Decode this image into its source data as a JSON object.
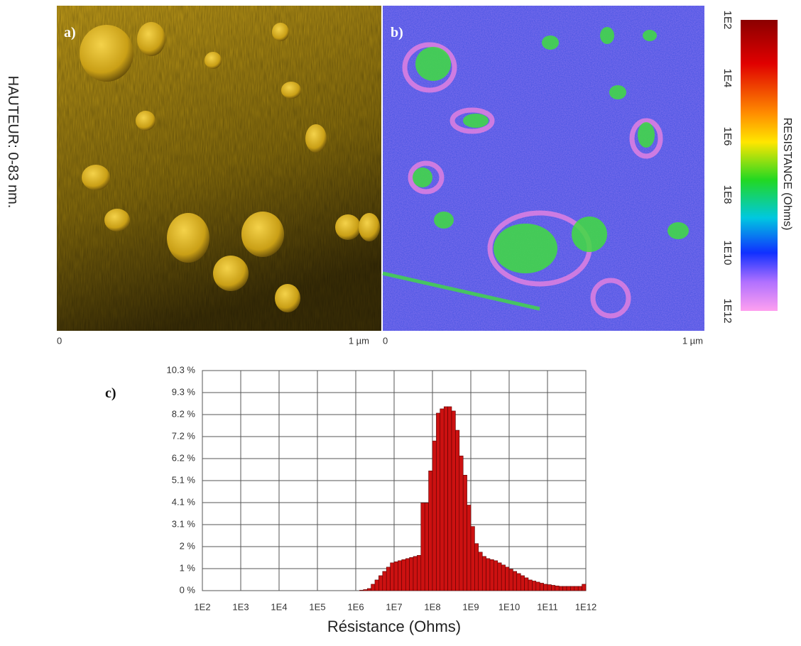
{
  "panels": [
    {
      "label": "a)",
      "x_start": "0",
      "x_end": "1 µm"
    },
    {
      "label": "b)",
      "x_start": "0",
      "x_end": "1 µm"
    }
  ],
  "height_label": "HAUTEUR: 0-83 nm.",
  "colorbar": {
    "title": "RESISTANCE (Ohms)",
    "ticks": [
      "1E2",
      "1E4",
      "1E6",
      "1E8",
      "1E10",
      "1E12"
    ]
  },
  "chart_data": {
    "type": "histogram",
    "label": "c)",
    "xlabel": "Résistance (Ohms)",
    "xscale": "log",
    "xlim": [
      100.0,
      1000000000000.0
    ],
    "xticks": [
      {
        "value": 100.0,
        "label": "1E2"
      },
      {
        "value": 1000.0,
        "label": "1E3"
      },
      {
        "value": 10000.0,
        "label": "1E4"
      },
      {
        "value": 100000.0,
        "label": "1E5"
      },
      {
        "value": 1000000.0,
        "label": "1E6"
      },
      {
        "value": 10000000.0,
        "label": "1E7"
      },
      {
        "value": 100000000.0,
        "label": "1E8"
      },
      {
        "value": 1000000000.0,
        "label": "1E9"
      },
      {
        "value": 10000000000.0,
        "label": "1E10"
      },
      {
        "value": 100000000000.0,
        "label": "1E11"
      },
      {
        "value": 1000000000000.0,
        "label": "1E12"
      }
    ],
    "ylim": [
      0,
      10.29
    ],
    "yticks": [
      {
        "value": 0,
        "label": "0 %"
      },
      {
        "value": 1.029,
        "label": "1 %"
      },
      {
        "value": 2.058,
        "label": "2 %"
      },
      {
        "value": 3.087,
        "label": "3.1 %"
      },
      {
        "value": 4.116,
        "label": "4.1 %"
      },
      {
        "value": 5.145,
        "label": "5.1 %"
      },
      {
        "value": 6.174,
        "label": "6.2 %"
      },
      {
        "value": 7.203,
        "label": "7.2 %"
      },
      {
        "value": 8.232,
        "label": "8.2 %"
      },
      {
        "value": 9.261,
        "label": "9.3 %"
      },
      {
        "value": 10.29,
        "label": "10.3 %"
      }
    ],
    "bins": [
      1000000.0,
      1260000.0,
      1580000.0,
      2000000.0,
      2510000.0,
      3160000.0,
      3980000.0,
      5010000.0,
      6310000.0,
      7940000.0,
      10000000.0,
      12600000.0,
      15800000.0,
      20000000.0,
      25100000.0,
      31600000.0,
      39800000.0,
      50100000.0,
      63100000.0,
      79400000.0,
      100000000.0,
      126000000.0,
      158000000.0,
      200000000.0,
      251000000.0,
      316000000.0,
      398000000.0,
      501000000.0,
      631000000.0,
      794000000.0,
      1000000000.0,
      1260000000.0,
      1580000000.0,
      2000000000.0,
      2510000000.0,
      3160000000.0,
      3980000000.0,
      5010000000.0,
      6310000000.0,
      7940000000.0,
      10000000000.0,
      12600000000.0,
      15800000000.0,
      20000000000.0,
      25100000000.0,
      31600000000.0,
      39800000000.0,
      50100000000.0,
      63100000000.0,
      79400000000.0,
      100000000000.0,
      126000000000.0,
      158000000000.0,
      200000000000.0,
      251000000000.0,
      316000000000.0,
      398000000000.0,
      501000000000.0,
      631000000000.0,
      794000000000.0,
      1000000000000.0
    ],
    "counts": [
      0,
      0.02,
      0.05,
      0.1,
      0.3,
      0.5,
      0.7,
      0.9,
      1.1,
      1.3,
      1.35,
      1.4,
      1.45,
      1.5,
      1.55,
      1.6,
      1.65,
      4.1,
      4.1,
      5.6,
      7.0,
      8.3,
      8.5,
      8.6,
      8.6,
      8.4,
      7.5,
      6.3,
      5.4,
      4.0,
      3.0,
      2.2,
      1.8,
      1.6,
      1.5,
      1.45,
      1.4,
      1.3,
      1.2,
      1.1,
      1.0,
      0.9,
      0.8,
      0.7,
      0.6,
      0.5,
      0.45,
      0.4,
      0.35,
      0.3,
      0.28,
      0.25,
      0.22,
      0.2,
      0.2,
      0.2,
      0.2,
      0.2,
      0.2,
      0.3
    ],
    "color": "#cc1111",
    "grid": true
  }
}
